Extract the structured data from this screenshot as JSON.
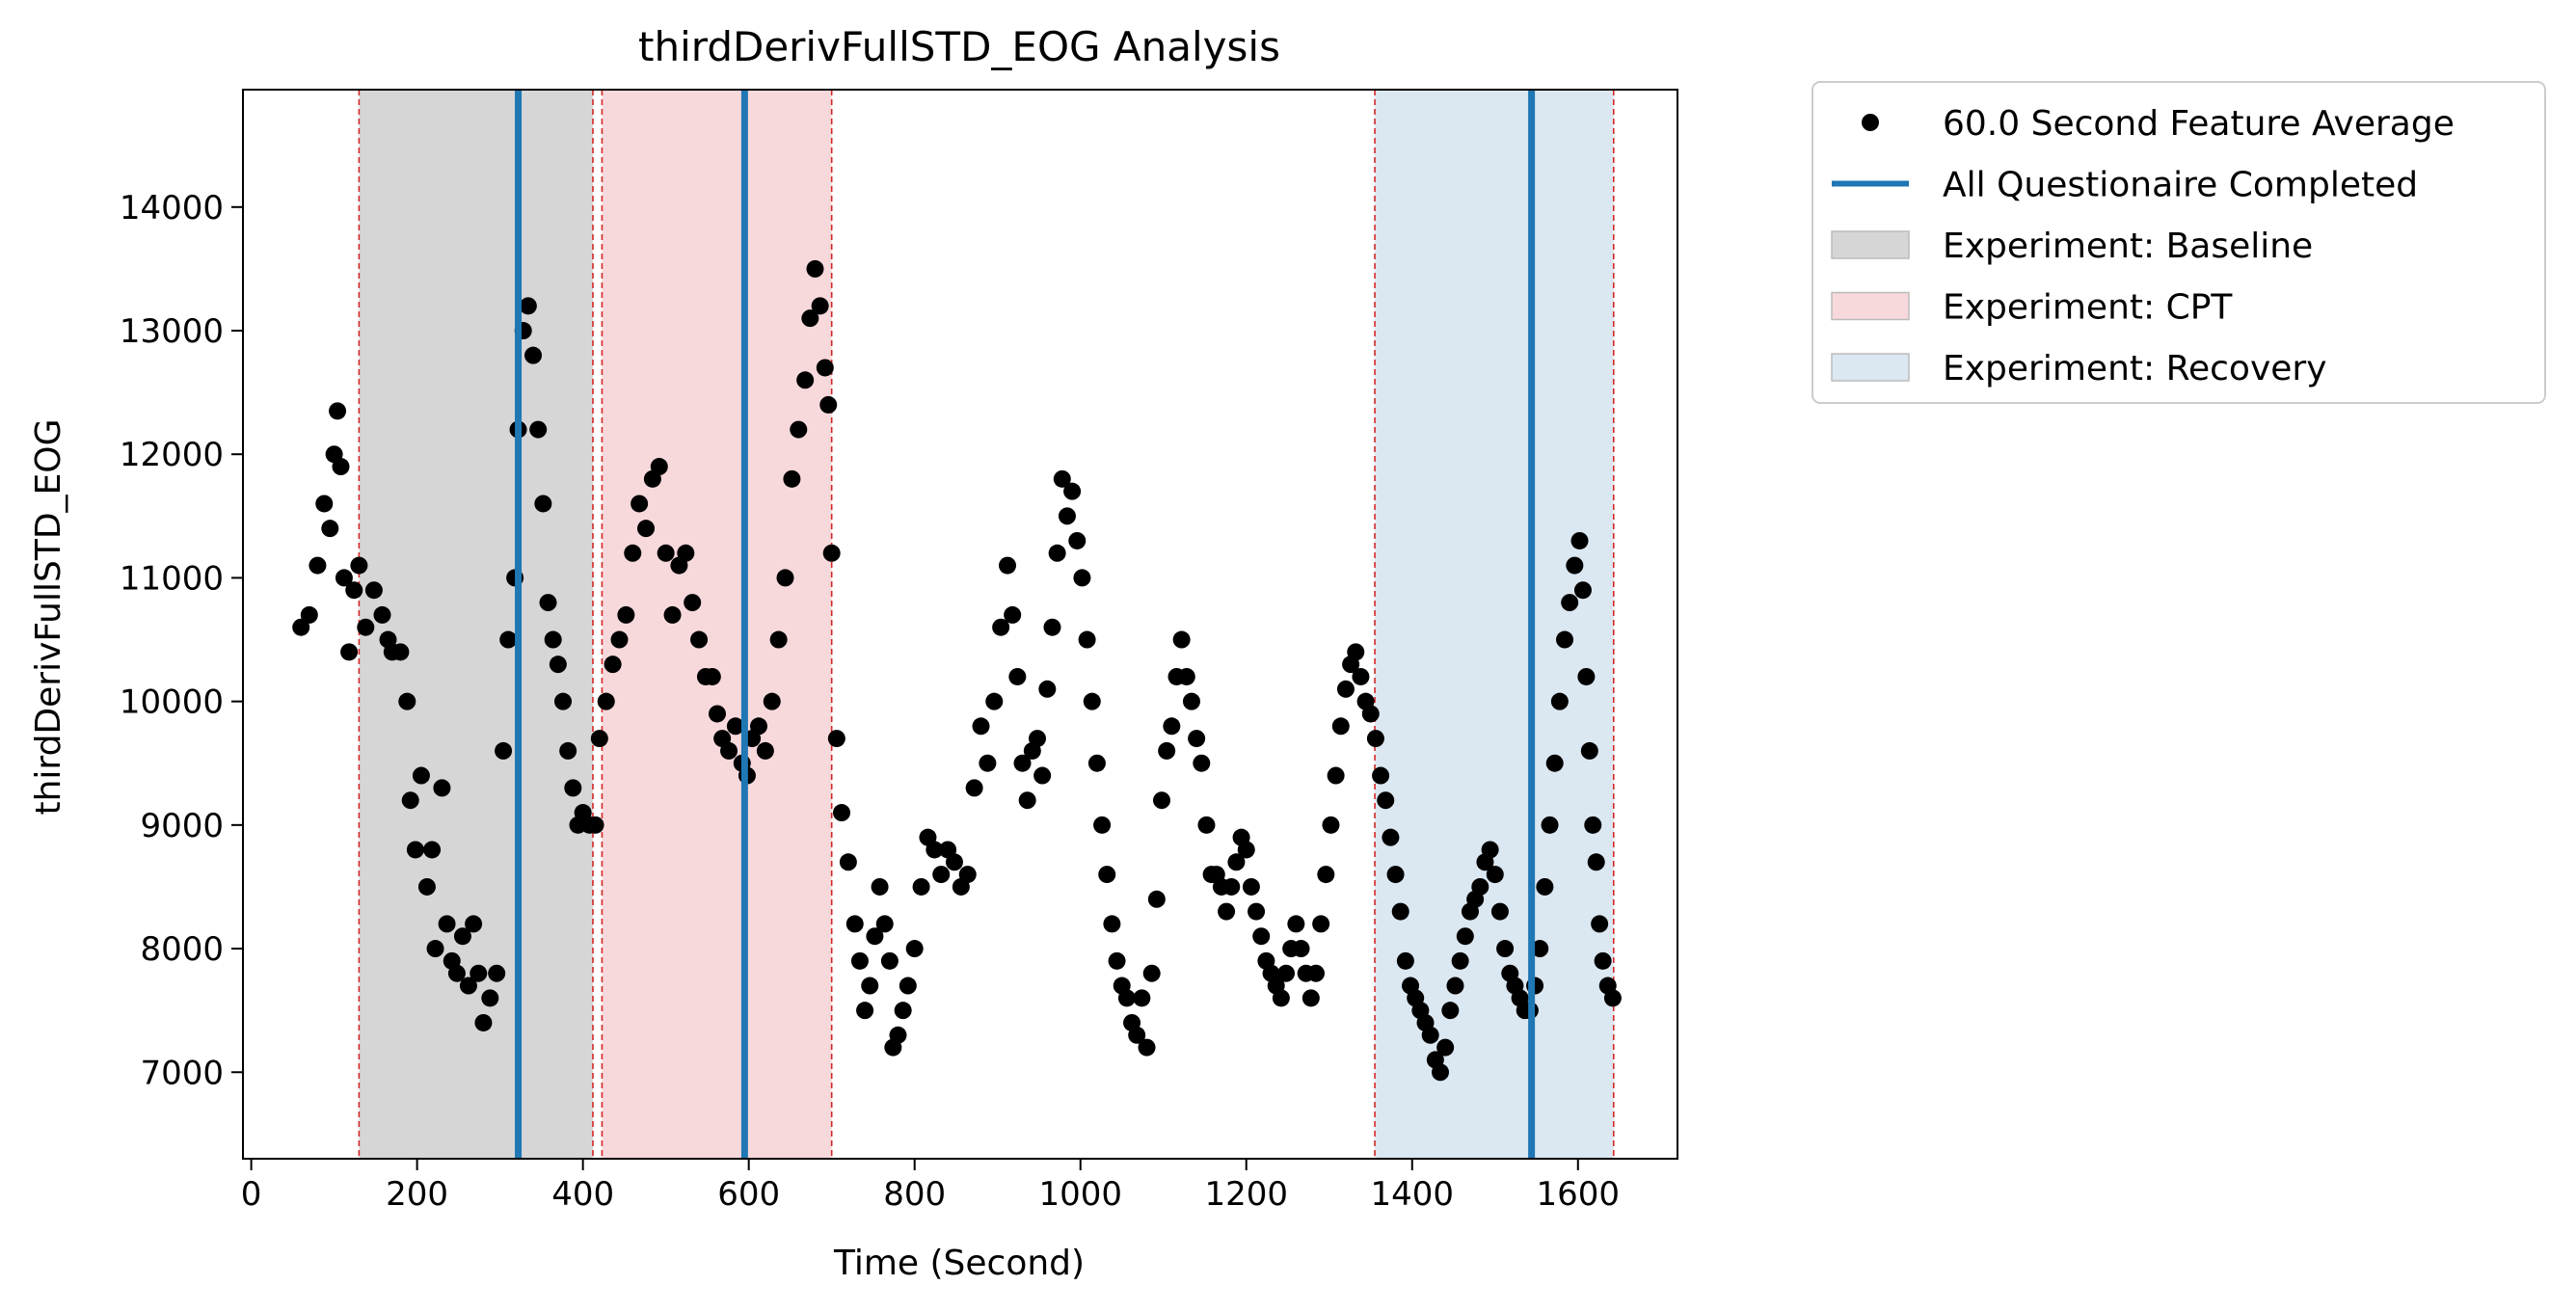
{
  "chart_data": {
    "type": "scatter",
    "title": "thirdDerivFullSTD_EOG Analysis",
    "xlabel": "Time (Second)",
    "ylabel": "thirdDerivFullSTD_EOG",
    "xlim": [
      -10,
      1720
    ],
    "ylim": [
      6300,
      14950
    ],
    "x_ticks": [
      0,
      200,
      400,
      600,
      800,
      1000,
      1200,
      1400,
      1600
    ],
    "x_tick_labels": [
      "0",
      "200",
      "400",
      "600",
      "800",
      "1000",
      "1200",
      "1400",
      "1600"
    ],
    "y_ticks": [
      7000,
      8000,
      9000,
      10000,
      11000,
      12000,
      13000,
      14000
    ],
    "y_tick_labels": [
      "7000",
      "8000",
      "9000",
      "10000",
      "11000",
      "12000",
      "13000",
      "14000"
    ],
    "grid": false,
    "legend_position": "outside-right-top",
    "legend": [
      {
        "label": "60.0 Second Feature Average",
        "kind": "marker",
        "color": "#000000"
      },
      {
        "label": "All Questionaire Completed",
        "kind": "line",
        "color": "#1f77b4"
      },
      {
        "label": "Experiment: Baseline",
        "kind": "patch",
        "color": "#d6d6d6"
      },
      {
        "label": "Experiment: CPT",
        "kind": "patch",
        "color": "#f7d9dc"
      },
      {
        "label": "Experiment: Recovery",
        "kind": "patch",
        "color": "#dbe7f1"
      }
    ],
    "spans": [
      {
        "name": "Experiment: Baseline",
        "start": 130,
        "end": 412,
        "color": "#d6d6d6"
      },
      {
        "name": "Experiment: CPT",
        "start": 423,
        "end": 700,
        "color": "#f7d9dc"
      },
      {
        "name": "Experiment: Recovery",
        "start": 1355,
        "end": 1643,
        "color": "#dbe7f1"
      }
    ],
    "boundary_lines": [
      130,
      412,
      423,
      700,
      1355,
      1643
    ],
    "boundary_color": "#d62728",
    "questionnaire_lines": [
      322,
      595,
      1544
    ],
    "questionnaire_color": "#1f77b4",
    "series": [
      {
        "name": "60.0 Second Feature Average",
        "color": "#000000",
        "points": [
          [
            60,
            10600
          ],
          [
            70,
            10700
          ],
          [
            80,
            11100
          ],
          [
            88,
            11600
          ],
          [
            95,
            11400
          ],
          [
            100,
            12000
          ],
          [
            104,
            12350
          ],
          [
            108,
            11900
          ],
          [
            112,
            11000
          ],
          [
            118,
            10400
          ],
          [
            124,
            10900
          ],
          [
            130,
            11100
          ],
          [
            138,
            10600
          ],
          [
            148,
            10900
          ],
          [
            158,
            10700
          ],
          [
            165,
            10500
          ],
          [
            170,
            10400
          ],
          [
            180,
            10400
          ],
          [
            188,
            10000
          ],
          [
            192,
            9200
          ],
          [
            198,
            8800
          ],
          [
            205,
            9400
          ],
          [
            212,
            8500
          ],
          [
            218,
            8800
          ],
          [
            222,
            8000
          ],
          [
            230,
            9300
          ],
          [
            236,
            8200
          ],
          [
            242,
            7900
          ],
          [
            248,
            7800
          ],
          [
            255,
            8100
          ],
          [
            262,
            7700
          ],
          [
            268,
            8200
          ],
          [
            274,
            7800
          ],
          [
            280,
            7400
          ],
          [
            288,
            7600
          ],
          [
            296,
            7800
          ],
          [
            304,
            9600
          ],
          [
            310,
            10500
          ],
          [
            318,
            11000
          ],
          [
            322,
            12200
          ],
          [
            328,
            13000
          ],
          [
            334,
            13200
          ],
          [
            340,
            12800
          ],
          [
            346,
            12200
          ],
          [
            352,
            11600
          ],
          [
            358,
            10800
          ],
          [
            364,
            10500
          ],
          [
            370,
            10300
          ],
          [
            376,
            10000
          ],
          [
            382,
            9600
          ],
          [
            388,
            9300
          ],
          [
            394,
            9000
          ],
          [
            400,
            9100
          ],
          [
            408,
            9000
          ],
          [
            415,
            9000
          ],
          [
            420,
            9700
          ],
          [
            428,
            10000
          ],
          [
            436,
            10300
          ],
          [
            444,
            10500
          ],
          [
            452,
            10700
          ],
          [
            460,
            11200
          ],
          [
            468,
            11600
          ],
          [
            476,
            11400
          ],
          [
            484,
            11800
          ],
          [
            492,
            11900
          ],
          [
            500,
            11200
          ],
          [
            508,
            10700
          ],
          [
            516,
            11100
          ],
          [
            524,
            11200
          ],
          [
            532,
            10800
          ],
          [
            540,
            10500
          ],
          [
            548,
            10200
          ],
          [
            556,
            10200
          ],
          [
            562,
            9900
          ],
          [
            568,
            9700
          ],
          [
            576,
            9600
          ],
          [
            584,
            9800
          ],
          [
            592,
            9500
          ],
          [
            598,
            9400
          ],
          [
            604,
            9700
          ],
          [
            612,
            9800
          ],
          [
            620,
            9600
          ],
          [
            628,
            10000
          ],
          [
            636,
            10500
          ],
          [
            644,
            11000
          ],
          [
            652,
            11800
          ],
          [
            660,
            12200
          ],
          [
            668,
            12600
          ],
          [
            674,
            13100
          ],
          [
            680,
            13500
          ],
          [
            686,
            13200
          ],
          [
            692,
            12700
          ],
          [
            696,
            12400
          ],
          [
            700,
            11200
          ],
          [
            706,
            9700
          ],
          [
            712,
            9100
          ],
          [
            720,
            8700
          ],
          [
            728,
            8200
          ],
          [
            734,
            7900
          ],
          [
            740,
            7500
          ],
          [
            746,
            7700
          ],
          [
            752,
            8100
          ],
          [
            758,
            8500
          ],
          [
            764,
            8200
          ],
          [
            770,
            7900
          ],
          [
            774,
            7200
          ],
          [
            780,
            7300
          ],
          [
            786,
            7500
          ],
          [
            792,
            7700
          ],
          [
            800,
            8000
          ],
          [
            808,
            8500
          ],
          [
            816,
            8900
          ],
          [
            824,
            8800
          ],
          [
            832,
            8600
          ],
          [
            840,
            8800
          ],
          [
            848,
            8700
          ],
          [
            856,
            8500
          ],
          [
            864,
            8600
          ],
          [
            872,
            9300
          ],
          [
            880,
            9800
          ],
          [
            888,
            9500
          ],
          [
            896,
            10000
          ],
          [
            904,
            10600
          ],
          [
            912,
            11100
          ],
          [
            918,
            10700
          ],
          [
            924,
            10200
          ],
          [
            930,
            9500
          ],
          [
            936,
            9200
          ],
          [
            942,
            9600
          ],
          [
            948,
            9700
          ],
          [
            954,
            9400
          ],
          [
            960,
            10100
          ],
          [
            966,
            10600
          ],
          [
            972,
            11200
          ],
          [
            978,
            11800
          ],
          [
            984,
            11500
          ],
          [
            990,
            11700
          ],
          [
            996,
            11300
          ],
          [
            1002,
            11000
          ],
          [
            1008,
            10500
          ],
          [
            1014,
            10000
          ],
          [
            1020,
            9500
          ],
          [
            1026,
            9000
          ],
          [
            1032,
            8600
          ],
          [
            1038,
            8200
          ],
          [
            1044,
            7900
          ],
          [
            1050,
            7700
          ],
          [
            1056,
            7600
          ],
          [
            1062,
            7400
          ],
          [
            1068,
            7300
          ],
          [
            1074,
            7600
          ],
          [
            1080,
            7200
          ],
          [
            1086,
            7800
          ],
          [
            1092,
            8400
          ],
          [
            1098,
            9200
          ],
          [
            1104,
            9600
          ],
          [
            1110,
            9800
          ],
          [
            1116,
            10200
          ],
          [
            1122,
            10500
          ],
          [
            1128,
            10200
          ],
          [
            1134,
            10000
          ],
          [
            1140,
            9700
          ],
          [
            1146,
            9500
          ],
          [
            1152,
            9000
          ],
          [
            1158,
            8600
          ],
          [
            1164,
            8600
          ],
          [
            1170,
            8500
          ],
          [
            1176,
            8300
          ],
          [
            1182,
            8500
          ],
          [
            1188,
            8700
          ],
          [
            1194,
            8900
          ],
          [
            1200,
            8800
          ],
          [
            1206,
            8500
          ],
          [
            1212,
            8300
          ],
          [
            1218,
            8100
          ],
          [
            1224,
            7900
          ],
          [
            1230,
            7800
          ],
          [
            1236,
            7700
          ],
          [
            1242,
            7600
          ],
          [
            1248,
            7800
          ],
          [
            1254,
            8000
          ],
          [
            1260,
            8200
          ],
          [
            1266,
            8000
          ],
          [
            1272,
            7800
          ],
          [
            1278,
            7600
          ],
          [
            1284,
            7800
          ],
          [
            1290,
            8200
          ],
          [
            1296,
            8600
          ],
          [
            1302,
            9000
          ],
          [
            1308,
            9400
          ],
          [
            1314,
            9800
          ],
          [
            1320,
            10100
          ],
          [
            1326,
            10300
          ],
          [
            1332,
            10400
          ],
          [
            1338,
            10200
          ],
          [
            1344,
            10000
          ],
          [
            1350,
            9900
          ],
          [
            1356,
            9700
          ],
          [
            1362,
            9400
          ],
          [
            1368,
            9200
          ],
          [
            1374,
            8900
          ],
          [
            1380,
            8600
          ],
          [
            1386,
            8300
          ],
          [
            1392,
            7900
          ],
          [
            1398,
            7700
          ],
          [
            1404,
            7600
          ],
          [
            1410,
            7500
          ],
          [
            1416,
            7400
          ],
          [
            1422,
            7300
          ],
          [
            1428,
            7100
          ],
          [
            1434,
            7000
          ],
          [
            1440,
            7200
          ],
          [
            1446,
            7500
          ],
          [
            1452,
            7700
          ],
          [
            1458,
            7900
          ],
          [
            1464,
            8100
          ],
          [
            1470,
            8300
          ],
          [
            1476,
            8400
          ],
          [
            1482,
            8500
          ],
          [
            1488,
            8700
          ],
          [
            1494,
            8800
          ],
          [
            1500,
            8600
          ],
          [
            1506,
            8300
          ],
          [
            1512,
            8000
          ],
          [
            1518,
            7800
          ],
          [
            1524,
            7700
          ],
          [
            1530,
            7600
          ],
          [
            1536,
            7500
          ],
          [
            1542,
            7500
          ],
          [
            1548,
            7700
          ],
          [
            1554,
            8000
          ],
          [
            1560,
            8500
          ],
          [
            1566,
            9000
          ],
          [
            1572,
            9500
          ],
          [
            1578,
            10000
          ],
          [
            1584,
            10500
          ],
          [
            1590,
            10800
          ],
          [
            1596,
            11100
          ],
          [
            1602,
            11300
          ],
          [
            1606,
            10900
          ],
          [
            1610,
            10200
          ],
          [
            1614,
            9600
          ],
          [
            1618,
            9000
          ],
          [
            1622,
            8700
          ],
          [
            1626,
            8200
          ],
          [
            1630,
            7900
          ],
          [
            1636,
            7700
          ],
          [
            1642,
            7600
          ]
        ]
      }
    ]
  }
}
